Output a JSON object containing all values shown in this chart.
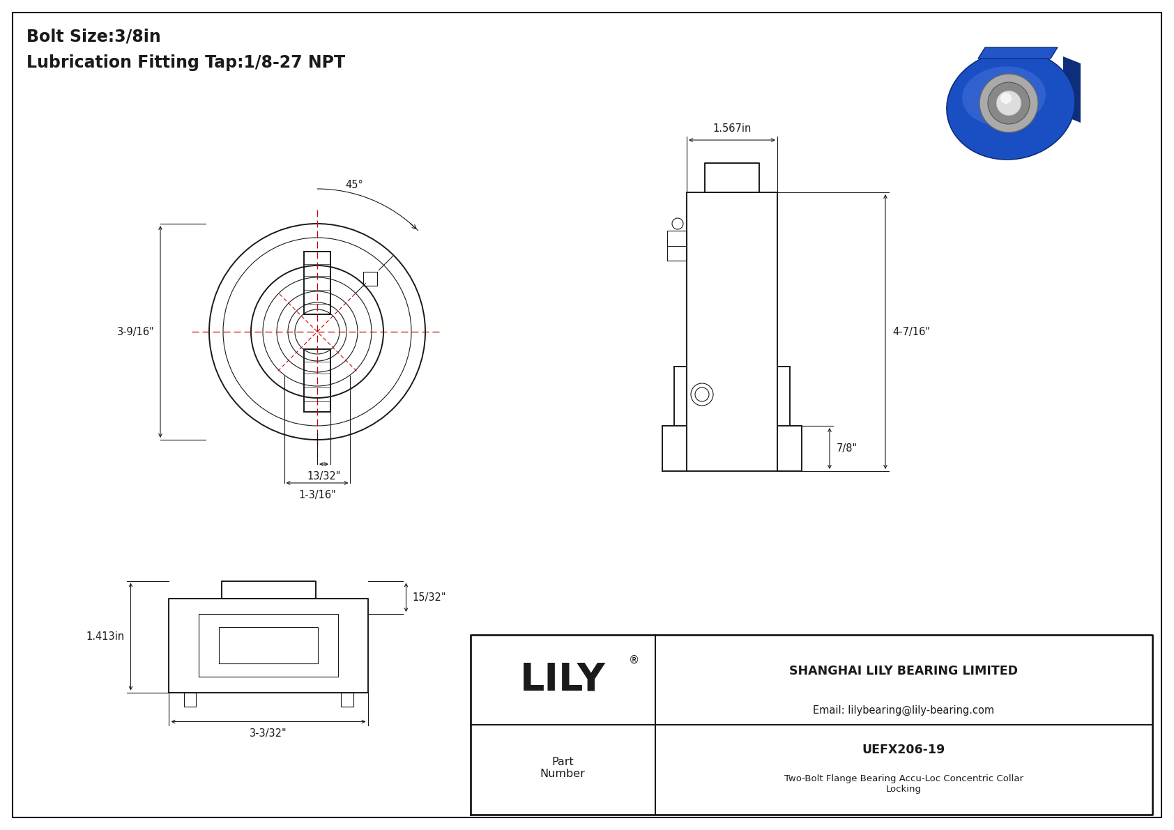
{
  "page_bg": "#ffffff",
  "line_color": "#1a1a1a",
  "red_color": "#cc0000",
  "title_line1": "Bolt Size:3/8in",
  "title_line2": "Lubrication Fitting Tap:1/8-27 NPT",
  "title_fontsize": 17,
  "dim_fontsize": 10.5,
  "company_name": "SHANGHAI LILY BEARING LIMITED",
  "company_email": "Email: lilybearing@lily-bearing.com",
  "part_label": "Part\nNumber",
  "part_number": "UEFX206-19",
  "part_desc": "Two-Bolt Flange Bearing Accu-Loc Concentric Collar\nLocking",
  "lily_text": "LILY",
  "dims": {
    "front_height": "3-9/16\"",
    "front_bolt_span": "13/32\"",
    "front_width": "1-3/16\"",
    "angle": "45°",
    "side_width": "1.567in",
    "side_height": "4-7/16\"",
    "side_depth": "7/8\"",
    "bottom_height": "1.413in",
    "bottom_depth": "15/32\"",
    "bottom_width": "3-3/32\""
  }
}
